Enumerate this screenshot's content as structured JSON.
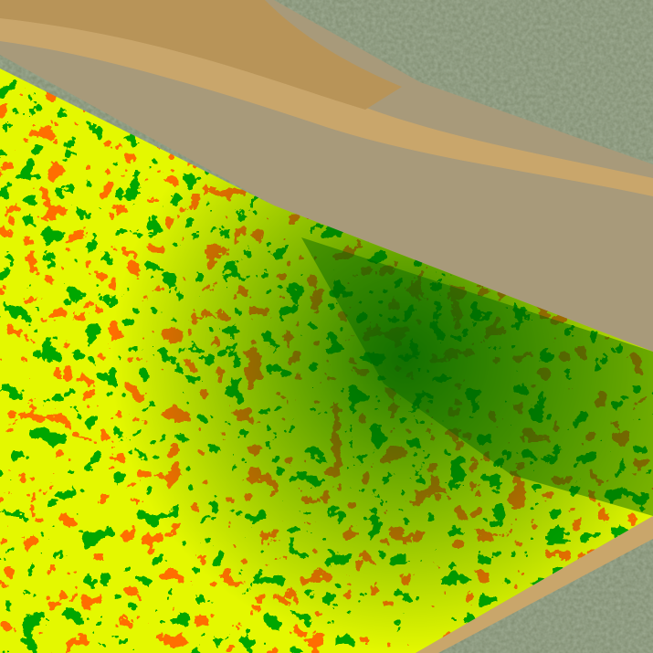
{
  "image": {
    "kind": "aerial drone orthophoto with vegetation index overlay",
    "colors": {
      "grass": "#7f8c70",
      "road": "#c9a66b",
      "bare_soil": "#a89a7a",
      "index_low": "#ff2a00",
      "index_mid": "#c8f000",
      "index_high": "#006400"
    }
  }
}
